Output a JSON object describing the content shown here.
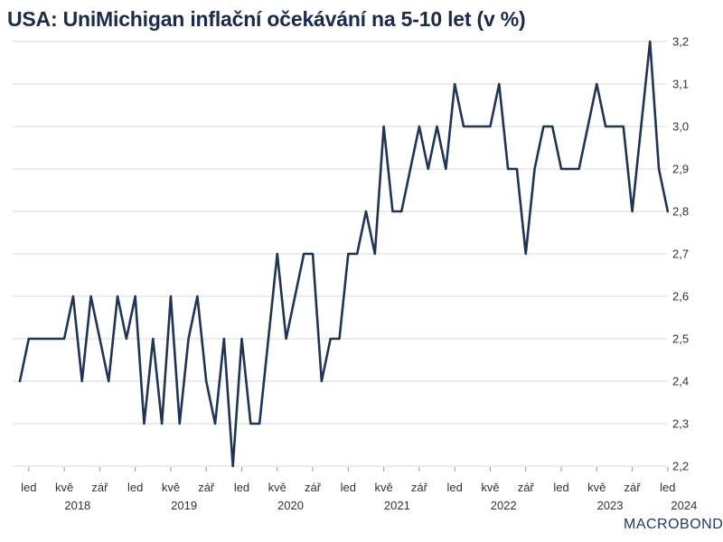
{
  "chart_data": {
    "type": "line",
    "title": "USA: UniMichigan inflační očekávání na 5-10 let (v %)",
    "xlabel": "",
    "ylabel": "",
    "ylim": [
      2.2,
      3.2
    ],
    "y_ticks": [
      "2,2",
      "2,3",
      "2,4",
      "2,5",
      "2,6",
      "2,7",
      "2,8",
      "2,9",
      "3,0",
      "3,1",
      "3,2"
    ],
    "y_axis_side": "right",
    "grid": true,
    "line_color": "#1f3456",
    "x_start": "2017-12",
    "month_tick_labels": [
      "led",
      "kvě",
      "zář"
    ],
    "year_labels": [
      "2018",
      "2019",
      "2020",
      "2021",
      "2022",
      "2023",
      "2024"
    ],
    "series": [
      {
        "values": [
          2.4,
          2.5,
          2.5,
          2.5,
          2.5,
          2.5,
          2.6,
          2.4,
          2.6,
          2.5,
          2.4,
          2.6,
          2.5,
          2.6,
          2.3,
          2.5,
          2.3,
          2.6,
          2.3,
          2.5,
          2.6,
          2.4,
          2.3,
          2.5,
          2.2,
          2.5,
          2.3,
          2.3,
          2.5,
          2.7,
          2.5,
          2.6,
          2.7,
          2.7,
          2.4,
          2.5,
          2.5,
          2.7,
          2.7,
          2.8,
          2.7,
          3.0,
          2.8,
          2.8,
          2.9,
          3.0,
          2.9,
          3.0,
          2.9,
          3.1,
          3.0,
          3.0,
          3.0,
          3.0,
          3.1,
          2.9,
          2.9,
          2.7,
          2.9,
          3.0,
          3.0,
          2.9,
          2.9,
          2.9,
          3.0,
          3.1,
          3.0,
          3.0,
          3.0,
          2.8,
          3.0,
          3.2,
          2.9,
          2.8
        ]
      }
    ]
  },
  "watermark": "MACROBOND"
}
